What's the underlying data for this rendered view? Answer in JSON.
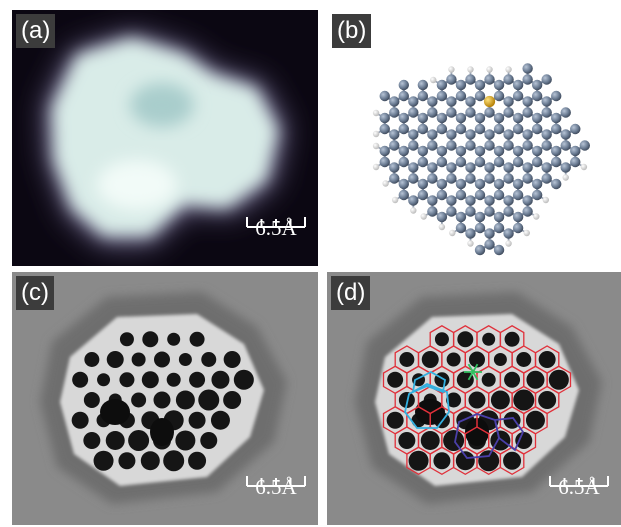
{
  "panels": {
    "a": {
      "label": "(a)",
      "scale": "6.5Å"
    },
    "b": {
      "label": "(b)"
    },
    "c": {
      "label": "(c)",
      "scale": "6.5Å"
    },
    "d": {
      "label": "(d)",
      "scale": "6.5Å"
    }
  },
  "colors": {
    "stm_glow": "#d9ece8",
    "stm_bg": "#0b0712",
    "carbon": "#6b7c93",
    "hydrogen": "#eeeeee",
    "dopant": "#d4a017",
    "afm_bg": "#8a8a8a",
    "outline_hexagon": "#e0303a",
    "outline_pentagon": "#33b0e0",
    "outline_heptagon": "#4a3fa8",
    "outline_star": "#30c060"
  }
}
